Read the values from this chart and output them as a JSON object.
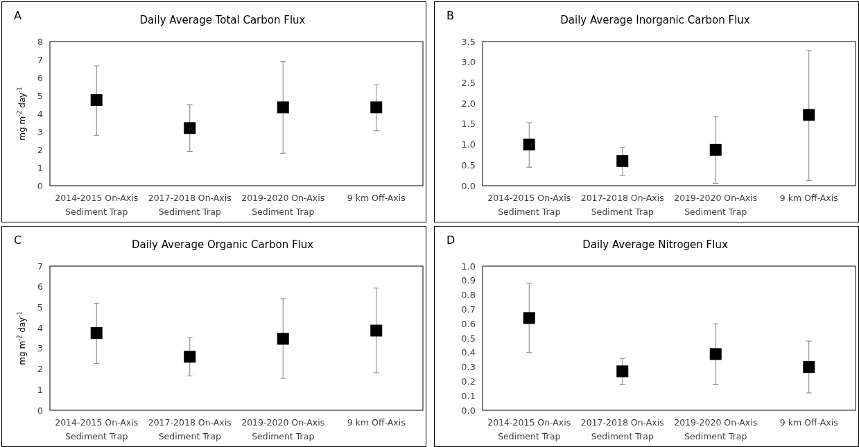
{
  "chart_data": [
    {
      "type": "scatter",
      "title": "Daily Average Total Carbon Flux",
      "annotations": [
        "A"
      ],
      "ylabel": "mg m$^{-2}$ day$^{-1}$",
      "categories": [
        "2014-2015 On-Axis\nSediment Trap",
        "2017-2018 On-Axis\nSediment Trap",
        "2019-2020 On-Axis\nSediment Trap",
        "9 km Off-Axis"
      ],
      "series": [
        {
          "color": "#000000",
          "values": [
            4.75,
            3.2,
            4.35,
            4.35
          ],
          "errors": [
            [
              2.8,
              6.65
            ],
            [
              1.9,
              4.5
            ],
            [
              1.8,
              6.9
            ],
            [
              3.05,
              5.6
            ]
          ]
        }
      ],
      "ylim": [
        0,
        8
      ],
      "yticks": [
        0,
        1,
        2,
        3,
        4,
        5,
        6,
        7,
        8
      ],
      "marker": "square"
    },
    {
      "type": "scatter",
      "title": "Daily Average Inorganic Carbon Flux",
      "annotations": [
        "B"
      ],
      "categories": [
        "2014-2015 On-Axis\nSediment Trap",
        "2017-2018 On-Axis\nSediment Trap",
        "2019-2020 On-Axis\nSediment Trap",
        "9 km Off-Axis"
      ],
      "series": [
        {
          "color": "#000000",
          "values": [
            1.0,
            0.6,
            0.87,
            1.72
          ],
          "errors": [
            [
              0.45,
              1.53
            ],
            [
              0.25,
              0.93
            ],
            [
              0.06,
              1.67
            ],
            [
              0.13,
              3.28
            ]
          ]
        }
      ],
      "ylim": [
        0,
        3.5
      ],
      "yticks": [
        {
          "value": 0,
          "label": "0.0"
        },
        {
          "value": 0.5,
          "label": "0.5"
        },
        {
          "value": 1,
          "label": "1.0"
        },
        {
          "value": 1.5,
          "label": "1.5"
        },
        {
          "value": 2,
          "label": "2.0"
        },
        {
          "value": 2.5,
          "label": "2.5"
        },
        {
          "value": 3,
          "label": "3.0"
        },
        {
          "value": 3.5,
          "label": "3.5"
        }
      ],
      "marker": "square"
    },
    {
      "type": "scatter",
      "title": "Daily Average Organic Carbon Flux",
      "annotations": [
        "C"
      ],
      "ylabel": "mg m$^{-2}$ day$^{-1}$",
      "categories": [
        "2014-2015 On-Axis\nSediment Trap",
        "2017-2018 On-Axis\nSediment Trap",
        "2019-2020 On-Axis\nSediment Trap",
        "9 km Off-Axis"
      ],
      "series": [
        {
          "color": "#000000",
          "values": [
            3.75,
            2.6,
            3.47,
            3.87
          ],
          "errors": [
            [
              2.28,
              5.2
            ],
            [
              1.67,
              3.52
            ],
            [
              1.55,
              5.42
            ],
            [
              1.82,
              5.93
            ]
          ]
        }
      ],
      "ylim": [
        0,
        7
      ],
      "yticks": [
        0,
        1,
        2,
        3,
        4,
        5,
        6,
        7
      ],
      "marker": "square"
    },
    {
      "type": "scatter",
      "title": "Daily Average Nitrogen Flux",
      "annotations": [
        "D"
      ],
      "categories": [
        "2014-2015 On-Axis\nSediment Trap",
        "2017-2018 On-Axis\nSediment Trap",
        "2019-2020 On-Axis\nSediment Trap",
        "9 km Off-Axis"
      ],
      "series": [
        {
          "color": "#000000",
          "values": [
            0.64,
            0.27,
            0.39,
            0.3
          ],
          "errors": [
            [
              0.4,
              0.88
            ],
            [
              0.18,
              0.36
            ],
            [
              0.18,
              0.6
            ],
            [
              0.12,
              0.48
            ]
          ]
        }
      ],
      "ylim": [
        0,
        1
      ],
      "yticks": [
        {
          "value": 0,
          "label": "0.0"
        },
        {
          "value": 0.1,
          "label": "0.1"
        },
        {
          "value": 0.2,
          "label": "0.2"
        },
        {
          "value": 0.3,
          "label": "0.3"
        },
        {
          "value": 0.4,
          "label": "0.4"
        },
        {
          "value": 0.5,
          "label": "0.5"
        },
        {
          "value": 0.6,
          "label": "0.6"
        },
        {
          "value": 0.7,
          "label": "0.7"
        },
        {
          "value": 0.8,
          "label": "0.8"
        },
        {
          "value": 0.9,
          "label": "0.9"
        },
        {
          "value": 1,
          "label": "1.0"
        }
      ],
      "marker": "square"
    }
  ]
}
